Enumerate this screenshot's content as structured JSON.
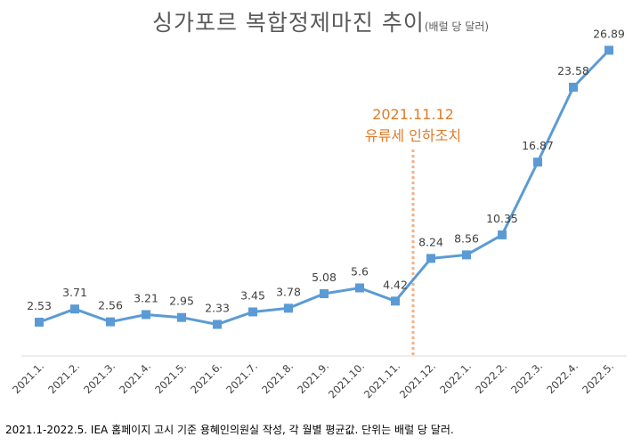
{
  "chart_data": {
    "type": "line",
    "title": "싱가포르 복합정제마진 추이",
    "title_unit": "(배럴 당 달러)",
    "categories": [
      "2021.1.",
      "2021.2.",
      "2021.3.",
      "2021.4.",
      "2021.5.",
      "2021.6.",
      "2021.7.",
      "2021.8.",
      "2021.9.",
      "2021.10.",
      "2021.11.",
      "2021.12.",
      "2022.1.",
      "2022.2.",
      "2022.3.",
      "2022.4.",
      "2022.5."
    ],
    "values": [
      2.53,
      3.71,
      2.56,
      3.21,
      2.95,
      2.33,
      3.45,
      3.78,
      5.08,
      5.6,
      4.42,
      8.24,
      8.56,
      10.35,
      16.87,
      23.58,
      26.89
    ],
    "value_labels": [
      "2.53",
      "3.71",
      "2.56",
      "3.21",
      "2.95",
      "2.33",
      "3.45",
      "3.78",
      "5.08",
      "5.6",
      "4.42",
      "8.24",
      "8.56",
      "10.35",
      "16.87",
      "23.58",
      "26.89"
    ],
    "ylim": [
      -0.5,
      29
    ],
    "grid": false,
    "legend": "none",
    "line_color": "#5b9bd5",
    "annotation": {
      "date": "2021.11.12",
      "text": "유류세 인하조치",
      "between_categories": [
        "2021.11.",
        "2021.12."
      ],
      "color": "#ed7d31"
    }
  },
  "footnote": "2021.1-2022.5. IEA 홈페이지 고시 기준 용혜인의원실 작성, 각 월별 평균값. 단위는 배럴 당 달러."
}
